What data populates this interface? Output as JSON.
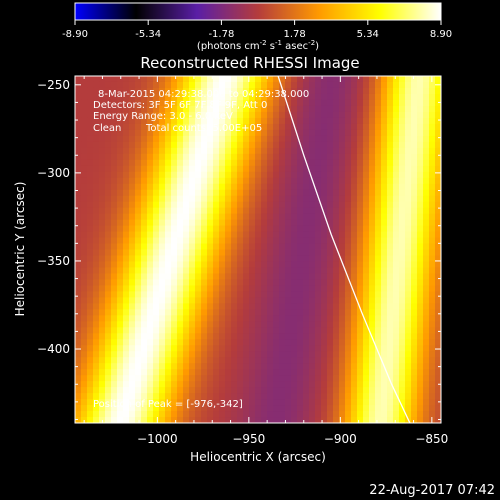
{
  "colorbar": {
    "tick_labels": [
      "-8.90",
      "-5.34",
      "-1.78",
      "1.78",
      "5.34",
      "8.90"
    ],
    "range": [
      -8.9,
      8.9
    ],
    "units": "(photons cm",
    "units_exp1": "-2",
    "units_mid": " s",
    "units_exp2": "-1",
    "units_mid2": " asec",
    "units_exp3": "-2",
    "units_end": ")",
    "colormap": [
      "#0000ff",
      "#000000",
      "#5a1ea6",
      "#b43c3c",
      "#ff9a00",
      "#ffff00",
      "#ffffff"
    ]
  },
  "chart_data": {
    "type": "heatmap",
    "title": "Reconstructed RHESSI Image",
    "xlabel": "Heliocentric X (arcsec)",
    "ylabel": "Heliocentric Y (arcsec)",
    "xlim": [
      -1045,
      -845
    ],
    "ylim": [
      -442,
      -245
    ],
    "x_ticks": [
      -1000,
      -950,
      -900,
      -850
    ],
    "x_tick_labels": [
      "−1000",
      "−950",
      "−900",
      "−850"
    ],
    "y_ticks": [
      -250,
      -300,
      -350,
      -400
    ],
    "y_tick_labels": [
      "−250",
      "−300",
      "−350",
      "−400"
    ],
    "bright_bands": [
      {
        "x_center_top": -963,
        "x_center_bottom": -1020,
        "peak": 8.9,
        "half_width": 26
      },
      {
        "x_center_top": -857,
        "x_center_bottom": -878,
        "peak": 8.0,
        "half_width": 20
      }
    ],
    "dark_bands": [
      {
        "x_center_top": -905,
        "x_center_bottom": -935,
        "level": -3.0,
        "half_width": 22
      }
    ],
    "peak_position": [
      -976,
      -342
    ],
    "limb_line": [
      [
        -934,
        -245
      ],
      [
        -920,
        -290
      ],
      [
        -905,
        -335
      ],
      [
        -888,
        -380
      ],
      [
        -872,
        -420
      ],
      [
        -862,
        -442
      ]
    ]
  },
  "annotations": {
    "time_range": "8-Mar-2015 04:29:38.000 to 04:29:38.000",
    "detectors": "Detectors: 3F 5F 6F 7F 8F 9F, Att 0",
    "energy": "Energy Range: 3.0 - 6.0 keV",
    "clean_label": "Clean",
    "total_counts": "Total counts: 5.00E+05",
    "peak_position": "Position of Peak = [-976,-342]"
  },
  "footer": {
    "date": "22-Aug-2017 07:42"
  }
}
